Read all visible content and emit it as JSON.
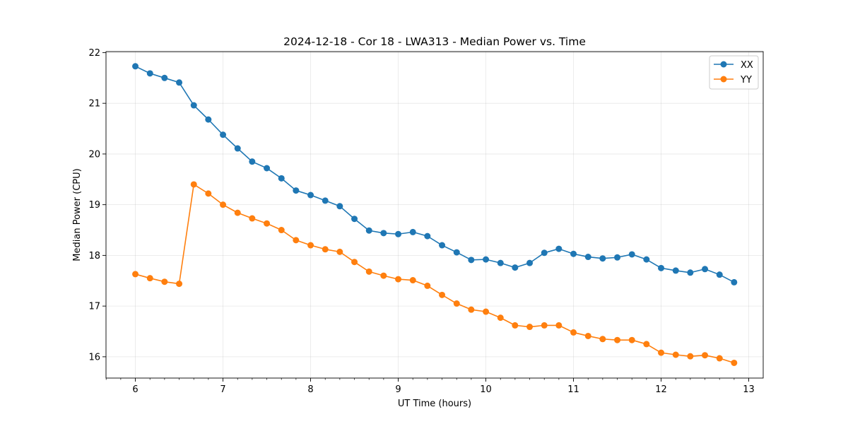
{
  "chart_data": {
    "type": "line",
    "title": "2024-12-18 - Cor 18 - LWA313 - Median Power vs. Time",
    "xlabel": "UT Time (hours)",
    "ylabel": "Median Power (CPU)",
    "xlim": [
      5.665,
      13.165
    ],
    "ylim": [
      15.58,
      22.02
    ],
    "xticks": [
      6,
      7,
      8,
      9,
      10,
      11,
      12,
      13
    ],
    "xtick_labels": [
      "6",
      "7",
      "8",
      "9",
      "10",
      "11",
      "12",
      "13"
    ],
    "yticks": [
      16,
      17,
      18,
      19,
      20,
      21,
      22
    ],
    "ytick_labels": [
      "16",
      "17",
      "18",
      "19",
      "20",
      "21",
      "22"
    ],
    "grid": true,
    "legend_position": "top-right",
    "x": [
      6.0,
      6.167,
      6.333,
      6.5,
      6.667,
      6.833,
      7.0,
      7.167,
      7.333,
      7.5,
      7.667,
      7.833,
      8.0,
      8.167,
      8.333,
      8.5,
      8.667,
      8.833,
      9.0,
      9.167,
      9.333,
      9.5,
      9.667,
      9.833,
      10.0,
      10.167,
      10.333,
      10.5,
      10.667,
      10.833,
      11.0,
      11.167,
      11.333,
      11.5,
      11.667,
      11.833,
      12.0,
      12.167,
      12.333,
      12.5,
      12.667,
      12.833
    ],
    "series": [
      {
        "name": "XX",
        "color": "#1f77b4",
        "values": [
          21.73,
          21.59,
          21.5,
          21.41,
          20.96,
          20.68,
          20.38,
          20.11,
          19.85,
          19.72,
          19.52,
          19.28,
          19.19,
          19.08,
          18.97,
          18.72,
          18.49,
          18.44,
          18.42,
          18.46,
          18.38,
          18.2,
          18.06,
          17.91,
          17.92,
          17.85,
          17.76,
          17.85,
          18.05,
          18.13,
          18.03,
          17.97,
          17.94,
          17.96,
          18.02,
          17.92,
          17.75,
          17.7,
          17.66,
          17.73,
          17.62,
          17.47
        ]
      },
      {
        "name": "YY",
        "color": "#ff7f0e",
        "values": [
          17.63,
          17.55,
          17.48,
          17.44,
          19.4,
          19.22,
          19.0,
          18.84,
          18.73,
          18.63,
          18.5,
          18.3,
          18.2,
          18.12,
          18.07,
          17.87,
          17.68,
          17.6,
          17.53,
          17.51,
          17.4,
          17.22,
          17.05,
          16.93,
          16.89,
          16.77,
          16.62,
          16.59,
          16.62,
          16.62,
          16.48,
          16.41,
          16.35,
          16.33,
          16.33,
          16.25,
          16.08,
          16.04,
          16.01,
          16.03,
          15.97,
          15.88
        ]
      }
    ]
  }
}
